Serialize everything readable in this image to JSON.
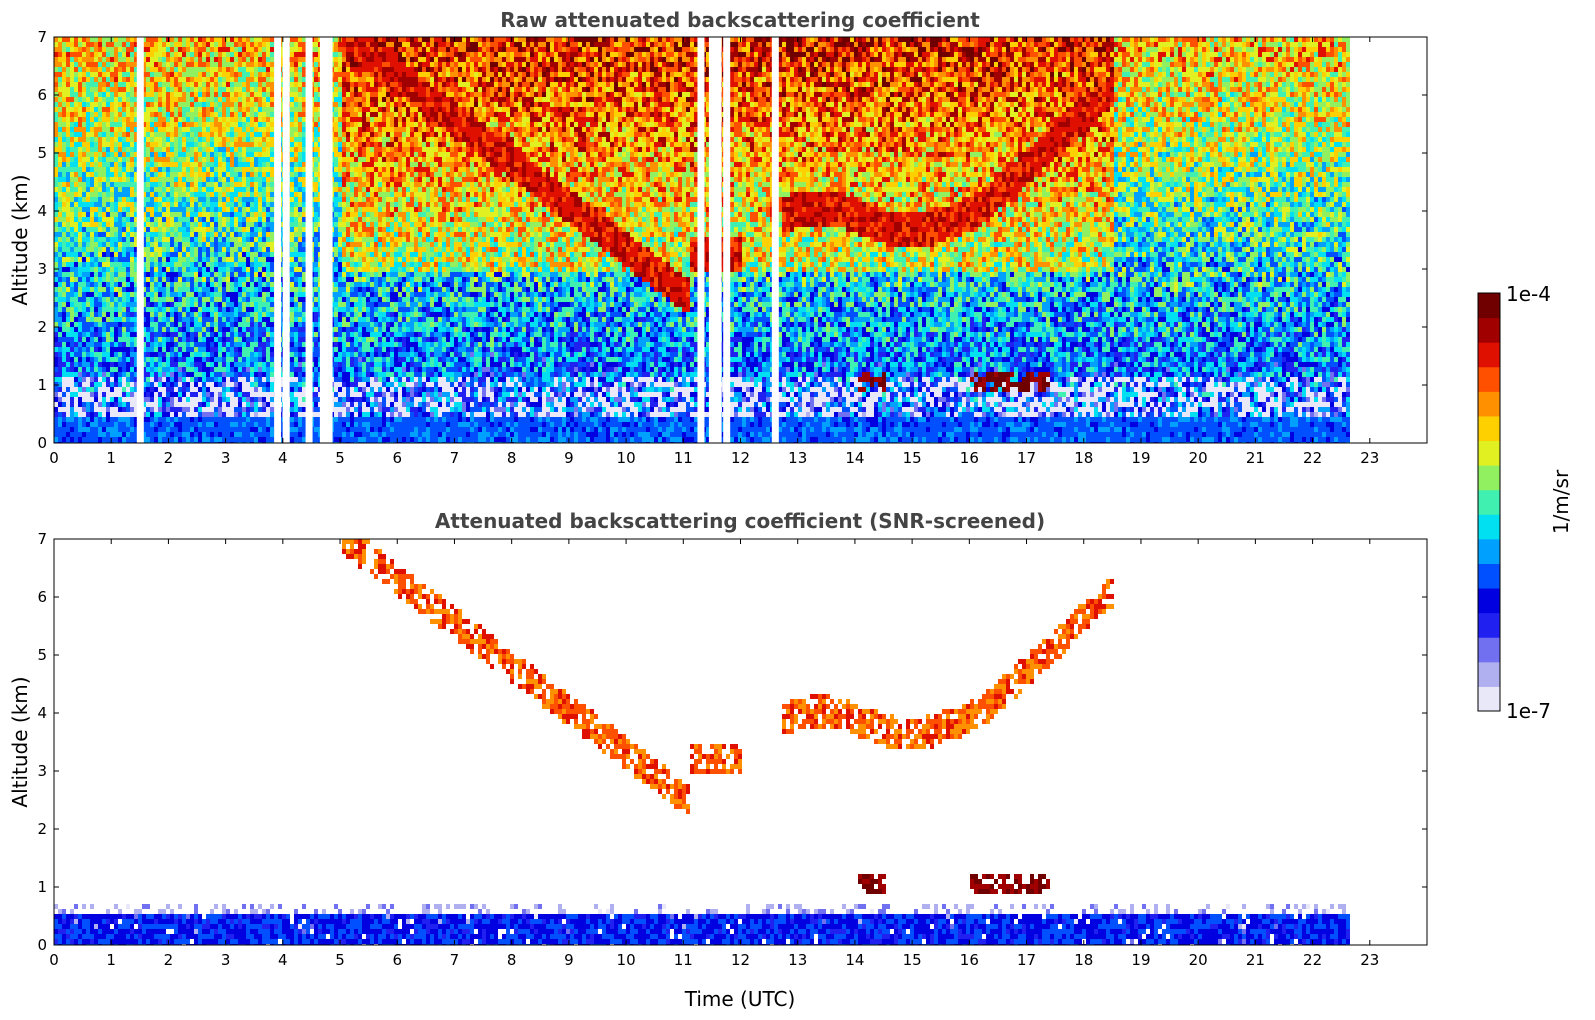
{
  "chart_data": [
    {
      "type": "heatmap",
      "title": "Raw attenuated backscattering coefficient",
      "xlabel": "",
      "ylabel": "Altitude (km)",
      "xlim": [
        0,
        24
      ],
      "ylim": [
        0,
        7
      ],
      "x_ticks": [
        "0",
        "1",
        "2",
        "3",
        "4",
        "5",
        "6",
        "7",
        "8",
        "9",
        "10",
        "11",
        "12",
        "13",
        "14",
        "15",
        "16",
        "17",
        "18",
        "19",
        "20",
        "21",
        "22",
        "23"
      ],
      "y_ticks": [
        "0",
        "1",
        "2",
        "3",
        "4",
        "5",
        "6",
        "7"
      ],
      "data_end_time": 22.65,
      "gaps_time": [
        1.5,
        3.9,
        4.05,
        4.45,
        4.7,
        4.8,
        11.3,
        11.5,
        11.6,
        11.75,
        12.6
      ],
      "features": [
        {
          "label": "boundary layer",
          "time_range": [
            0,
            22.65
          ],
          "altitude_range": [
            0,
            0.5
          ],
          "level": "low"
        },
        {
          "label": "cirrus layer",
          "time_range": [
            5,
            12
          ],
          "altitude_range": [
            2,
            7
          ],
          "level": "high"
        },
        {
          "label": "cirrus layer",
          "time_range": [
            12.7,
            18.5
          ],
          "altitude_range": [
            3.3,
            7
          ],
          "level": "high"
        },
        {
          "label": "low cloud",
          "time_range": [
            14,
            14.5
          ],
          "altitude_range": [
            1.0,
            1.3
          ],
          "level": "very high"
        },
        {
          "label": "low cloud",
          "time_range": [
            16,
            17.4
          ],
          "altitude_range": [
            0.9,
            1.4
          ],
          "level": "very high"
        }
      ]
    },
    {
      "type": "heatmap",
      "title": "Attenuated backscattering coefficient (SNR-screened)",
      "xlabel": "Time (UTC)",
      "ylabel": "Altitude (km)",
      "xlim": [
        0,
        24
      ],
      "ylim": [
        0,
        7
      ],
      "x_ticks": [
        "0",
        "1",
        "2",
        "3",
        "4",
        "5",
        "6",
        "7",
        "8",
        "9",
        "10",
        "11",
        "12",
        "13",
        "14",
        "15",
        "16",
        "17",
        "18",
        "19",
        "20",
        "21",
        "22",
        "23"
      ],
      "y_ticks": [
        "0",
        "1",
        "2",
        "3",
        "4",
        "5",
        "6",
        "7"
      ],
      "data_end_time": 22.65,
      "features": [
        {
          "label": "boundary layer",
          "time_range": [
            0,
            22.65
          ],
          "altitude_range": [
            0,
            0.7
          ],
          "level": "low"
        },
        {
          "label": "cirrus descending",
          "time_range": [
            5,
            11.8
          ],
          "altitude_range": [
            2.1,
            6.7
          ],
          "level": "high"
        },
        {
          "label": "cirrus",
          "time_range": [
            12.8,
            16.1
          ],
          "altitude_range": [
            3.3,
            4.3
          ],
          "level": "high"
        },
        {
          "label": "cirrus",
          "time_range": [
            17.4,
            18.5
          ],
          "altitude_range": [
            5.6,
            6.6
          ],
          "level": "high"
        },
        {
          "label": "low cloud",
          "time_range": [
            14,
            14.5
          ],
          "altitude_range": [
            1.0,
            1.4
          ],
          "level": "very high"
        },
        {
          "label": "low cloud",
          "time_range": [
            16,
            17.4
          ],
          "altitude_range": [
            0.9,
            1.4
          ],
          "level": "very high"
        }
      ]
    }
  ],
  "colorbar": {
    "label": "1/m/sr",
    "max_label": "1e-4",
    "min_label": "1e-7",
    "colormap": [
      "#e8e8f8",
      "#b0b0f0",
      "#7070f0",
      "#2020f0",
      "#0000e0",
      "#0050ff",
      "#00a0ff",
      "#00e0f0",
      "#40f0b0",
      "#90f060",
      "#e0f020",
      "#ffd000",
      "#ff9000",
      "#ff5000",
      "#e01000",
      "#a00000",
      "#700000"
    ]
  }
}
